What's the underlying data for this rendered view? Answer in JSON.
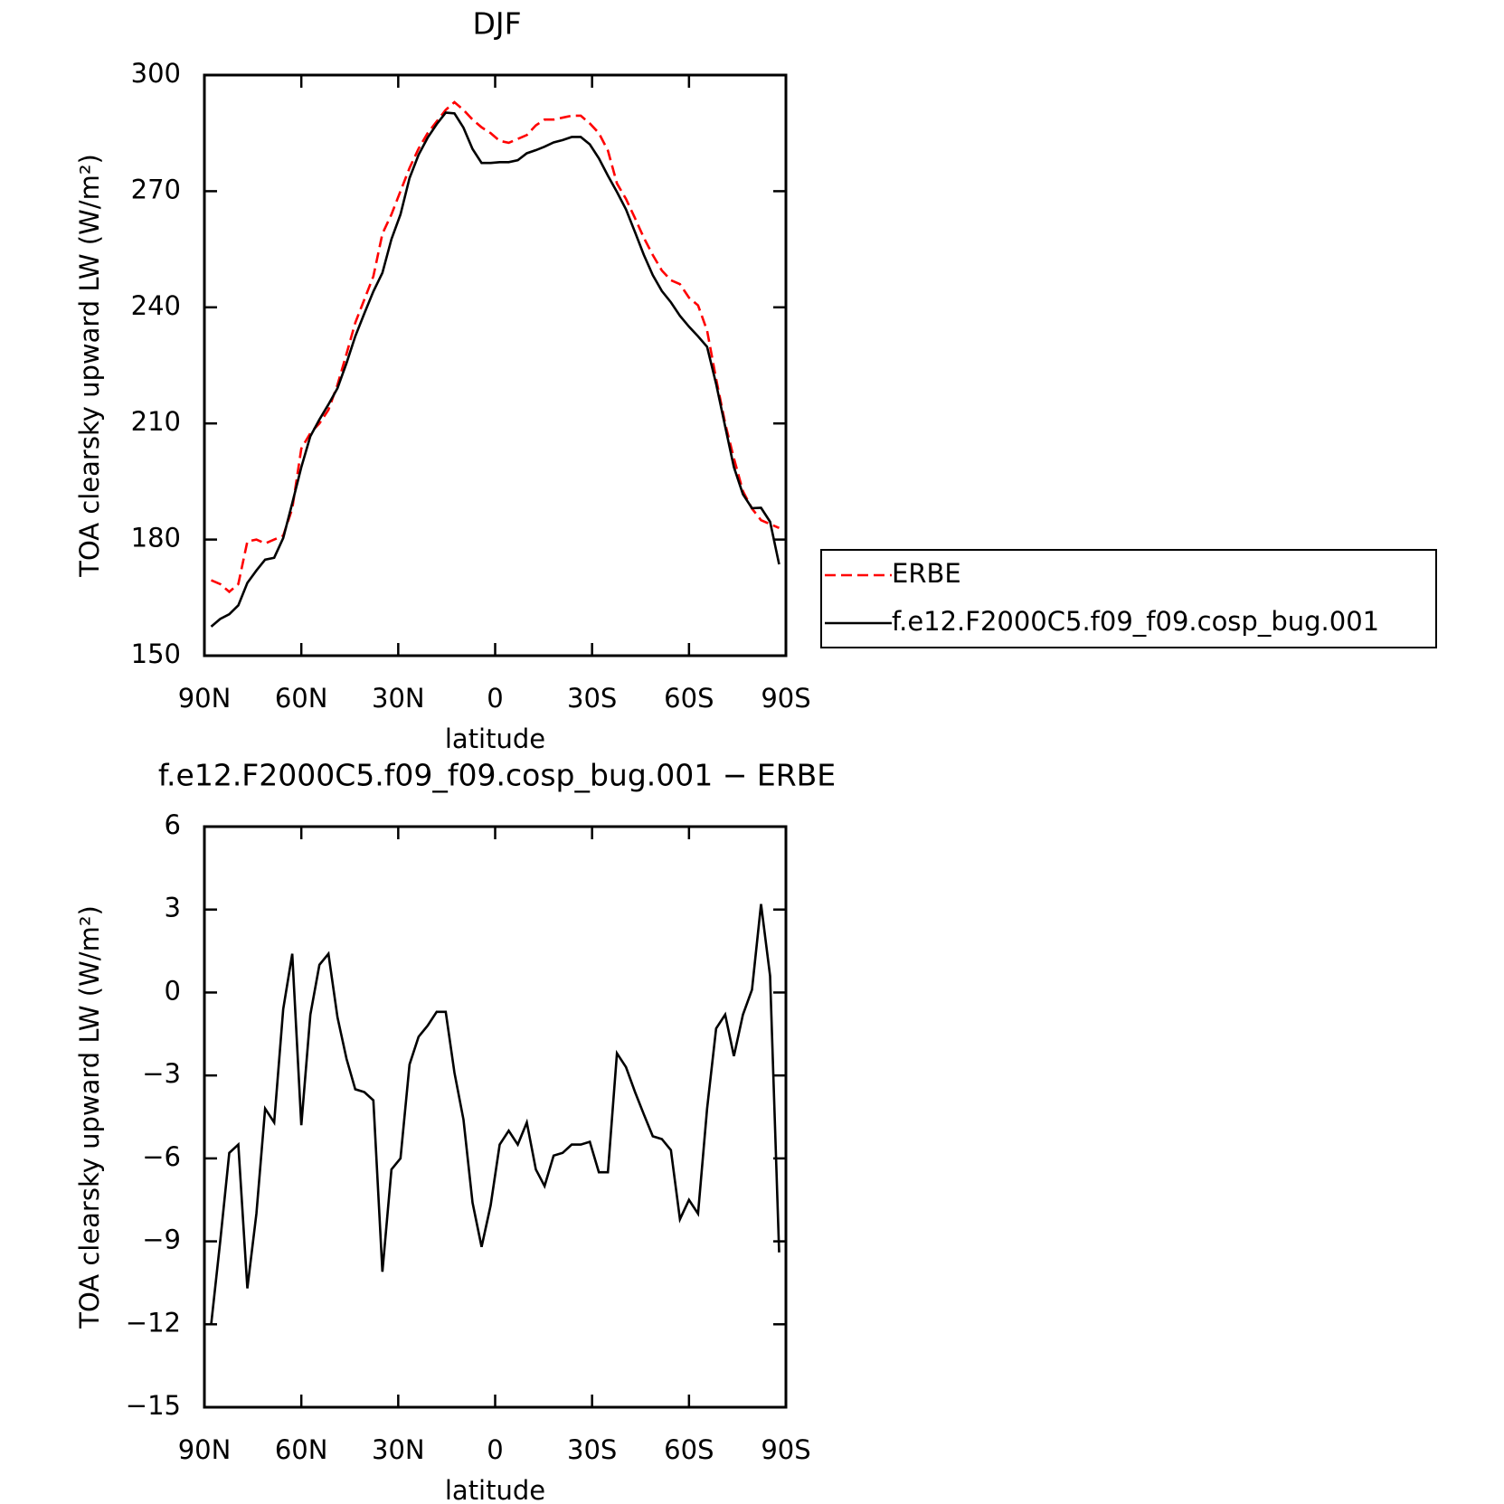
{
  "chart_data": [
    {
      "type": "line",
      "title": "DJF",
      "xlabel": "latitude",
      "ylabel": "TOA clearsky upward LW (W/m²)",
      "x": [
        87.9,
        85.1,
        82.3,
        79.5,
        76.7,
        73.9,
        71.2,
        68.4,
        65.6,
        62.8,
        60.0,
        57.2,
        54.4,
        51.6,
        48.8,
        46.0,
        43.3,
        40.5,
        37.7,
        34.9,
        32.1,
        29.3,
        26.5,
        23.7,
        20.9,
        18.1,
        15.3,
        12.6,
        9.8,
        7.0,
        4.2,
        1.4,
        -1.4,
        -4.2,
        -7.0,
        -9.8,
        -12.6,
        -15.3,
        -18.1,
        -20.9,
        -23.7,
        -26.5,
        -29.3,
        -32.1,
        -34.9,
        -37.7,
        -40.5,
        -43.3,
        -46.0,
        -48.8,
        -51.6,
        -54.4,
        -57.2,
        -60.0,
        -62.8,
        -65.6,
        -68.4,
        -71.2,
        -73.9,
        -76.7,
        -79.5,
        -82.3,
        -85.1,
        -87.9
      ],
      "series": [
        {
          "name": "ERBE",
          "color": "#ff0000",
          "line_style": "dashed",
          "values": [
            169.5,
            168.5,
            166.5,
            168.5,
            179.5,
            180,
            179,
            180,
            181,
            188,
            203.5,
            207.5,
            210,
            213.5,
            220,
            228,
            236,
            242,
            248,
            259,
            264,
            270,
            276,
            281,
            285,
            288,
            291,
            293,
            291,
            288.5,
            286.5,
            285,
            283,
            282.5,
            283.5,
            284.5,
            287,
            288.5,
            288.5,
            289,
            289.5,
            289.5,
            287.5,
            285,
            280.5,
            272,
            268,
            263,
            258,
            253.5,
            249.5,
            247,
            246,
            242.5,
            240.5,
            234,
            221.5,
            210,
            201,
            192.5,
            188,
            185,
            184,
            183
          ]
        },
        {
          "name": "f.e12.F2000C5.f09_f09.cosp_bug.001",
          "color": "#000000",
          "line_style": "solid",
          "values": [
            157.5,
            159.5,
            160.7,
            163,
            168.8,
            172,
            174.8,
            175.3,
            180.4,
            189.4,
            198.7,
            206.7,
            211,
            214.9,
            219.1,
            225.6,
            232.5,
            238.4,
            244.1,
            248.9,
            257.6,
            264,
            273.4,
            279.4,
            283.8,
            287.3,
            290.3,
            290.1,
            286.4,
            280.9,
            277.3,
            277.3,
            277.5,
            277.5,
            278,
            279.8,
            280.6,
            281.5,
            282.6,
            283.2,
            284,
            284,
            282.1,
            278.5,
            274,
            269.8,
            265.3,
            259.4,
            253.6,
            248.3,
            244.2,
            241.3,
            237.8,
            235,
            232.5,
            229.8,
            220.2,
            209.2,
            198.7,
            191.7,
            188.1,
            188.2,
            184.6,
            173.6
          ]
        }
      ],
      "xlim": [
        90,
        -90
      ],
      "xticks": [
        {
          "value": 90,
          "label": "90N"
        },
        {
          "value": 60,
          "label": "60N"
        },
        {
          "value": 30,
          "label": "30N"
        },
        0,
        {
          "value": -30,
          "label": "30S"
        },
        {
          "value": -60,
          "label": "60S"
        },
        {
          "value": -90,
          "label": "90S"
        }
      ],
      "ylim": [
        150,
        300
      ],
      "yticks": [
        150,
        180,
        210,
        240,
        270,
        300
      ],
      "grid": false,
      "legend": "right"
    },
    {
      "type": "line",
      "title": "f.e12.F2000C5.f09_f09.cosp_bug.001 − ERBE",
      "xlabel": "latitude",
      "ylabel": "TOA clearsky upward LW (W/m²)",
      "x": [
        87.9,
        85.1,
        82.3,
        79.5,
        76.7,
        73.9,
        71.2,
        68.4,
        65.6,
        62.8,
        60.0,
        57.2,
        54.4,
        51.6,
        48.8,
        46.0,
        43.3,
        40.5,
        37.7,
        34.9,
        32.1,
        29.3,
        26.5,
        23.7,
        20.9,
        18.1,
        15.3,
        12.6,
        9.8,
        7.0,
        4.2,
        1.4,
        -1.4,
        -4.2,
        -7.0,
        -9.8,
        -12.6,
        -15.3,
        -18.1,
        -20.9,
        -23.7,
        -26.5,
        -29.3,
        -32.1,
        -34.9,
        -37.7,
        -40.5,
        -43.3,
        -46.0,
        -48.8,
        -51.6,
        -54.4,
        -57.2,
        -60.0,
        -62.8,
        -65.6,
        -68.4,
        -71.2,
        -73.9,
        -76.7,
        -79.5,
        -82.3,
        -85.1,
        -87.9
      ],
      "series": [
        {
          "color": "#000000",
          "line_style": "solid",
          "values": [
            -12.0,
            -9.0,
            -5.8,
            -5.5,
            -10.7,
            -8.0,
            -4.2,
            -4.7,
            -0.6,
            1.4,
            -4.8,
            -0.8,
            1.0,
            1.4,
            -0.9,
            -2.4,
            -3.5,
            -3.6,
            -3.9,
            -10.1,
            -6.4,
            -6.0,
            -2.6,
            -1.6,
            -1.2,
            -0.7,
            -0.7,
            -2.9,
            -4.6,
            -7.6,
            -9.2,
            -7.7,
            -5.5,
            -5.0,
            -5.5,
            -4.7,
            -6.4,
            -7.0,
            -5.9,
            -5.8,
            -5.5,
            -5.5,
            -5.4,
            -6.5,
            -6.5,
            -2.2,
            -2.7,
            -3.6,
            -4.4,
            -5.2,
            -5.3,
            -5.7,
            -8.2,
            -7.5,
            -8.0,
            -4.2,
            -1.3,
            -0.8,
            -2.3,
            -0.8,
            0.1,
            3.2,
            0.6,
            -9.4
          ]
        }
      ],
      "xlim": [
        90,
        -90
      ],
      "xticks": [
        {
          "value": 90,
          "label": "90N"
        },
        {
          "value": 60,
          "label": "60N"
        },
        {
          "value": 30,
          "label": "30N"
        },
        0,
        {
          "value": -30,
          "label": "30S"
        },
        {
          "value": -60,
          "label": "60S"
        },
        {
          "value": -90,
          "label": "90S"
        }
      ],
      "ylim": [
        -15,
        6
      ],
      "yticks": [
        {
          "value": -15,
          "label": "−15"
        },
        {
          "value": -12,
          "label": "−12"
        },
        {
          "value": -9,
          "label": "−9"
        },
        {
          "value": -6,
          "label": "−6"
        },
        {
          "value": -3,
          "label": "−3"
        },
        0,
        3,
        6
      ],
      "grid": false
    }
  ]
}
